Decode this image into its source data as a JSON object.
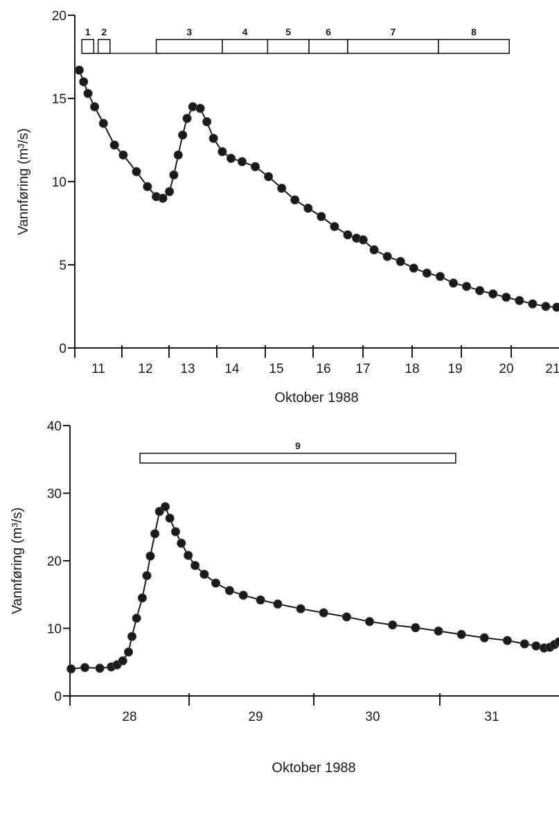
{
  "chart_data": [
    {
      "type": "line",
      "xlabel": "Oktober 1988",
      "ylabel": "Vannføring (m³/s)",
      "ylim": [
        0,
        20
      ],
      "xlim": [
        10.9,
        21.9
      ],
      "yticks": [
        0,
        5,
        10,
        15,
        20
      ],
      "xtick_labels": [
        "11",
        "12",
        "13",
        "14",
        "15",
        "16",
        "17",
        "18",
        "19",
        "20",
        "21"
      ],
      "grid": false,
      "segments": [
        {
          "label": "1",
          "start": 11.06,
          "end": 11.33
        },
        {
          "label": "2",
          "start": 11.43,
          "end": 11.7
        },
        {
          "label": "3",
          "start": 12.75,
          "end": 14.25
        },
        {
          "label": "4",
          "start": 14.25,
          "end": 15.28
        },
        {
          "label": "5",
          "start": 15.28,
          "end": 16.22
        },
        {
          "label": "6",
          "start": 16.22,
          "end": 17.1
        },
        {
          "label": "7",
          "start": 17.1,
          "end": 19.16
        },
        {
          "label": "8",
          "start": 19.16,
          "end": 20.77
        }
      ],
      "series": [
        {
          "values": [
            {
              "x": 11.0,
              "y": 16.7
            },
            {
              "x": 11.1,
              "y": 16.0
            },
            {
              "x": 11.2,
              "y": 15.3
            },
            {
              "x": 11.35,
              "y": 14.5
            },
            {
              "x": 11.55,
              "y": 13.5
            },
            {
              "x": 11.8,
              "y": 12.2
            },
            {
              "x": 12.0,
              "y": 11.6
            },
            {
              "x": 12.3,
              "y": 10.6
            },
            {
              "x": 12.55,
              "y": 9.7
            },
            {
              "x": 12.75,
              "y": 9.1
            },
            {
              "x": 12.9,
              "y": 9.0
            },
            {
              "x": 13.05,
              "y": 9.4
            },
            {
              "x": 13.15,
              "y": 10.4
            },
            {
              "x": 13.25,
              "y": 11.6
            },
            {
              "x": 13.35,
              "y": 12.8
            },
            {
              "x": 13.45,
              "y": 13.8
            },
            {
              "x": 13.58,
              "y": 14.5
            },
            {
              "x": 13.75,
              "y": 14.4
            },
            {
              "x": 13.9,
              "y": 13.6
            },
            {
              "x": 14.05,
              "y": 12.6
            },
            {
              "x": 14.25,
              "y": 11.8
            },
            {
              "x": 14.45,
              "y": 11.4
            },
            {
              "x": 14.7,
              "y": 11.2
            },
            {
              "x": 15.0,
              "y": 10.9
            },
            {
              "x": 15.3,
              "y": 10.3
            },
            {
              "x": 15.6,
              "y": 9.6
            },
            {
              "x": 15.9,
              "y": 8.9
            },
            {
              "x": 16.2,
              "y": 8.4
            },
            {
              "x": 16.5,
              "y": 7.9
            },
            {
              "x": 16.8,
              "y": 7.3
            },
            {
              "x": 17.1,
              "y": 6.8
            },
            {
              "x": 17.3,
              "y": 6.6
            },
            {
              "x": 17.45,
              "y": 6.5
            },
            {
              "x": 17.7,
              "y": 5.9
            },
            {
              "x": 18.0,
              "y": 5.5
            },
            {
              "x": 18.3,
              "y": 5.2
            },
            {
              "x": 18.6,
              "y": 4.8
            },
            {
              "x": 18.9,
              "y": 4.5
            },
            {
              "x": 19.2,
              "y": 4.3
            },
            {
              "x": 19.5,
              "y": 3.9
            },
            {
              "x": 19.8,
              "y": 3.7
            },
            {
              "x": 20.1,
              "y": 3.45
            },
            {
              "x": 20.4,
              "y": 3.25
            },
            {
              "x": 20.7,
              "y": 3.05
            },
            {
              "x": 21.0,
              "y": 2.85
            },
            {
              "x": 21.3,
              "y": 2.65
            },
            {
              "x": 21.6,
              "y": 2.5
            },
            {
              "x": 21.85,
              "y": 2.45
            }
          ]
        }
      ]
    },
    {
      "type": "line",
      "xlabel": "Oktober 1988",
      "ylabel": "Vannføring (m³/s)",
      "ylim": [
        0,
        40
      ],
      "xlim": [
        27.49,
        31.75
      ],
      "yticks": [
        0,
        10,
        20,
        30,
        40
      ],
      "xtick_labels": [
        "28",
        "29",
        "30",
        "31"
      ],
      "grid": false,
      "segments": [
        {
          "label": "9",
          "start": 28.1,
          "end": 30.85
        }
      ],
      "series": [
        {
          "values": [
            {
              "x": 27.5,
              "y": 4.0
            },
            {
              "x": 27.62,
              "y": 4.2
            },
            {
              "x": 27.75,
              "y": 4.1
            },
            {
              "x": 27.85,
              "y": 4.3
            },
            {
              "x": 27.9,
              "y": 4.6
            },
            {
              "x": 27.95,
              "y": 5.2
            },
            {
              "x": 28.0,
              "y": 6.5
            },
            {
              "x": 28.03,
              "y": 8.8
            },
            {
              "x": 28.07,
              "y": 11.5
            },
            {
              "x": 28.12,
              "y": 14.5
            },
            {
              "x": 28.16,
              "y": 17.8
            },
            {
              "x": 28.19,
              "y": 20.7
            },
            {
              "x": 28.23,
              "y": 24.0
            },
            {
              "x": 28.27,
              "y": 27.3
            },
            {
              "x": 28.32,
              "y": 28.0
            },
            {
              "x": 28.36,
              "y": 26.3
            },
            {
              "x": 28.41,
              "y": 24.3
            },
            {
              "x": 28.46,
              "y": 22.6
            },
            {
              "x": 28.52,
              "y": 20.8
            },
            {
              "x": 28.58,
              "y": 19.3
            },
            {
              "x": 28.66,
              "y": 18.0
            },
            {
              "x": 28.76,
              "y": 16.7
            },
            {
              "x": 28.88,
              "y": 15.6
            },
            {
              "x": 29.0,
              "y": 14.9
            },
            {
              "x": 29.15,
              "y": 14.2
            },
            {
              "x": 29.3,
              "y": 13.6
            },
            {
              "x": 29.5,
              "y": 12.9
            },
            {
              "x": 29.7,
              "y": 12.3
            },
            {
              "x": 29.9,
              "y": 11.7
            },
            {
              "x": 30.1,
              "y": 11.0
            },
            {
              "x": 30.3,
              "y": 10.5
            },
            {
              "x": 30.5,
              "y": 10.1
            },
            {
              "x": 30.7,
              "y": 9.6
            },
            {
              "x": 30.9,
              "y": 9.1
            },
            {
              "x": 31.1,
              "y": 8.6
            },
            {
              "x": 31.3,
              "y": 8.2
            },
            {
              "x": 31.45,
              "y": 7.7
            },
            {
              "x": 31.55,
              "y": 7.4
            },
            {
              "x": 31.62,
              "y": 7.1
            },
            {
              "x": 31.67,
              "y": 7.2
            },
            {
              "x": 31.71,
              "y": 7.6
            },
            {
              "x": 31.75,
              "y": 8.0
            }
          ]
        }
      ]
    }
  ]
}
